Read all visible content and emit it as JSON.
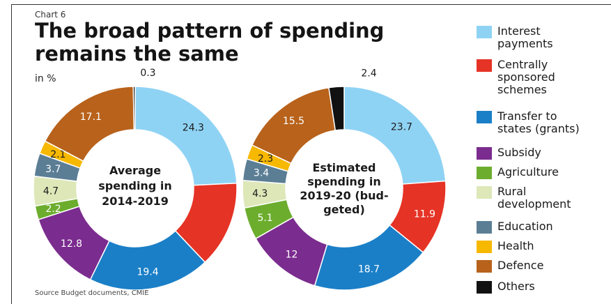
{
  "header": {
    "kicker": "Chart 6",
    "title_line1": "The broad pattern of spending",
    "title_line2": "remains the same",
    "unit": "in %"
  },
  "source": "Source  Budget documents, CMIE",
  "chart_data": [
    {
      "type": "pie",
      "center_label": [
        "Average",
        "spending in",
        "2014-2019"
      ],
      "categories": [
        "Interest payments",
        "Centrally sponsored schemes",
        "Transfer to states (grants)",
        "Subsidy",
        "Agriculture",
        "Rural development",
        "Education",
        "Health",
        "Defence",
        "Others"
      ],
      "values": [
        24.3,
        null,
        19.4,
        12.8,
        2.2,
        4.7,
        3.7,
        2.1,
        17.1,
        0.3
      ],
      "slice_values_for_drawing": [
        24.3,
        13.8,
        19.4,
        12.8,
        2.2,
        4.7,
        3.7,
        2.1,
        17.1,
        0.3
      ],
      "labels": [
        "24.3",
        "",
        "19.4",
        "12.8",
        "2.2",
        "4.7",
        "3.7",
        "2.1",
        "17.1",
        "0.3"
      ]
    },
    {
      "type": "pie",
      "center_label": [
        "Estimated",
        "spending in",
        "2019-20 (bud-",
        "geted)"
      ],
      "categories": [
        "Interest payments",
        "Centrally sponsored schemes",
        "Transfer to states (grants)",
        "Subsidy",
        "Agriculture",
        "Rural development",
        "Education",
        "Health",
        "Defence",
        "Others"
      ],
      "values": [
        23.7,
        11.9,
        18.7,
        12,
        5.1,
        4.3,
        3.4,
        2.3,
        15.5,
        2.4
      ],
      "labels": [
        "23.7",
        "11.9",
        "18.7",
        "12",
        "5.1",
        "4.3",
        "3.4",
        "2.3",
        "15.5",
        "2.4"
      ]
    }
  ],
  "legend": [
    {
      "label": "Interest\npayments",
      "color": "#8fd3f4"
    },
    {
      "label": "Centrally\nsponsored\nschemes",
      "color": "#e53325"
    },
    {
      "label": "Transfer to\nstates (grants)",
      "color": "#1a7fc7"
    },
    {
      "label": "Subsidy",
      "color": "#7b2c8f"
    },
    {
      "label": "Agriculture",
      "color": "#6cad2e"
    },
    {
      "label": "Rural\ndevelopment",
      "color": "#dde7b8"
    },
    {
      "label": "Education",
      "color": "#5b7e95"
    },
    {
      "label": "Health",
      "color": "#f7b800"
    },
    {
      "label": "Defence",
      "color": "#b8621b"
    },
    {
      "label": "Others",
      "color": "#111111"
    }
  ]
}
